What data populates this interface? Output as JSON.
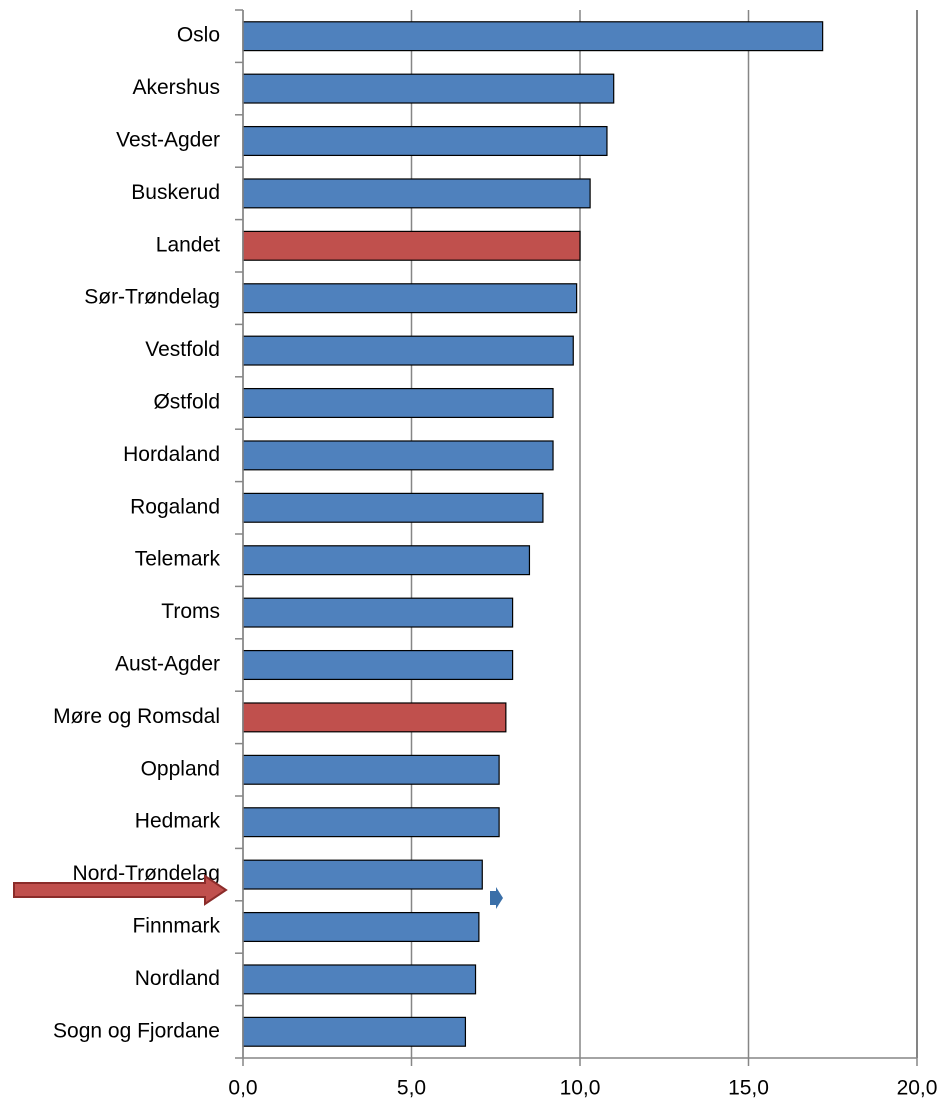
{
  "chart_data": {
    "type": "bar",
    "orientation": "horizontal",
    "categories": [
      "Oslo",
      "Akershus",
      "Vest-Agder",
      "Buskerud",
      "Landet",
      "Sør-Trøndelag",
      "Vestfold",
      "Østfold",
      "Hordaland",
      "Rogaland",
      "Telemark",
      "Troms",
      "Aust-Agder",
      "Møre og Romsdal",
      "Oppland",
      "Hedmark",
      "Nord-Trøndelag",
      "Finnmark",
      "Nordland",
      "Sogn og Fjordane"
    ],
    "values": [
      17.2,
      11.0,
      10.8,
      10.3,
      10.0,
      9.9,
      9.8,
      9.2,
      9.2,
      8.9,
      8.5,
      8.0,
      8.0,
      7.8,
      7.6,
      7.6,
      7.1,
      7.0,
      6.9,
      6.6
    ],
    "colors": [
      "#4f81bd",
      "#4f81bd",
      "#4f81bd",
      "#4f81bd",
      "#c0504d",
      "#4f81bd",
      "#4f81bd",
      "#4f81bd",
      "#4f81bd",
      "#4f81bd",
      "#4f81bd",
      "#4f81bd",
      "#4f81bd",
      "#c0504d",
      "#4f81bd",
      "#4f81bd",
      "#4f81bd",
      "#4f81bd",
      "#4f81bd",
      "#4f81bd"
    ],
    "xlim": [
      0,
      20
    ],
    "xticks": [
      {
        "value": 0,
        "label": "0,0"
      },
      {
        "value": 5,
        "label": "5,0"
      },
      {
        "value": 10,
        "label": "10,0"
      },
      {
        "value": 15,
        "label": "15,0"
      },
      {
        "value": 20,
        "label": "20,0"
      }
    ],
    "grid": true
  }
}
